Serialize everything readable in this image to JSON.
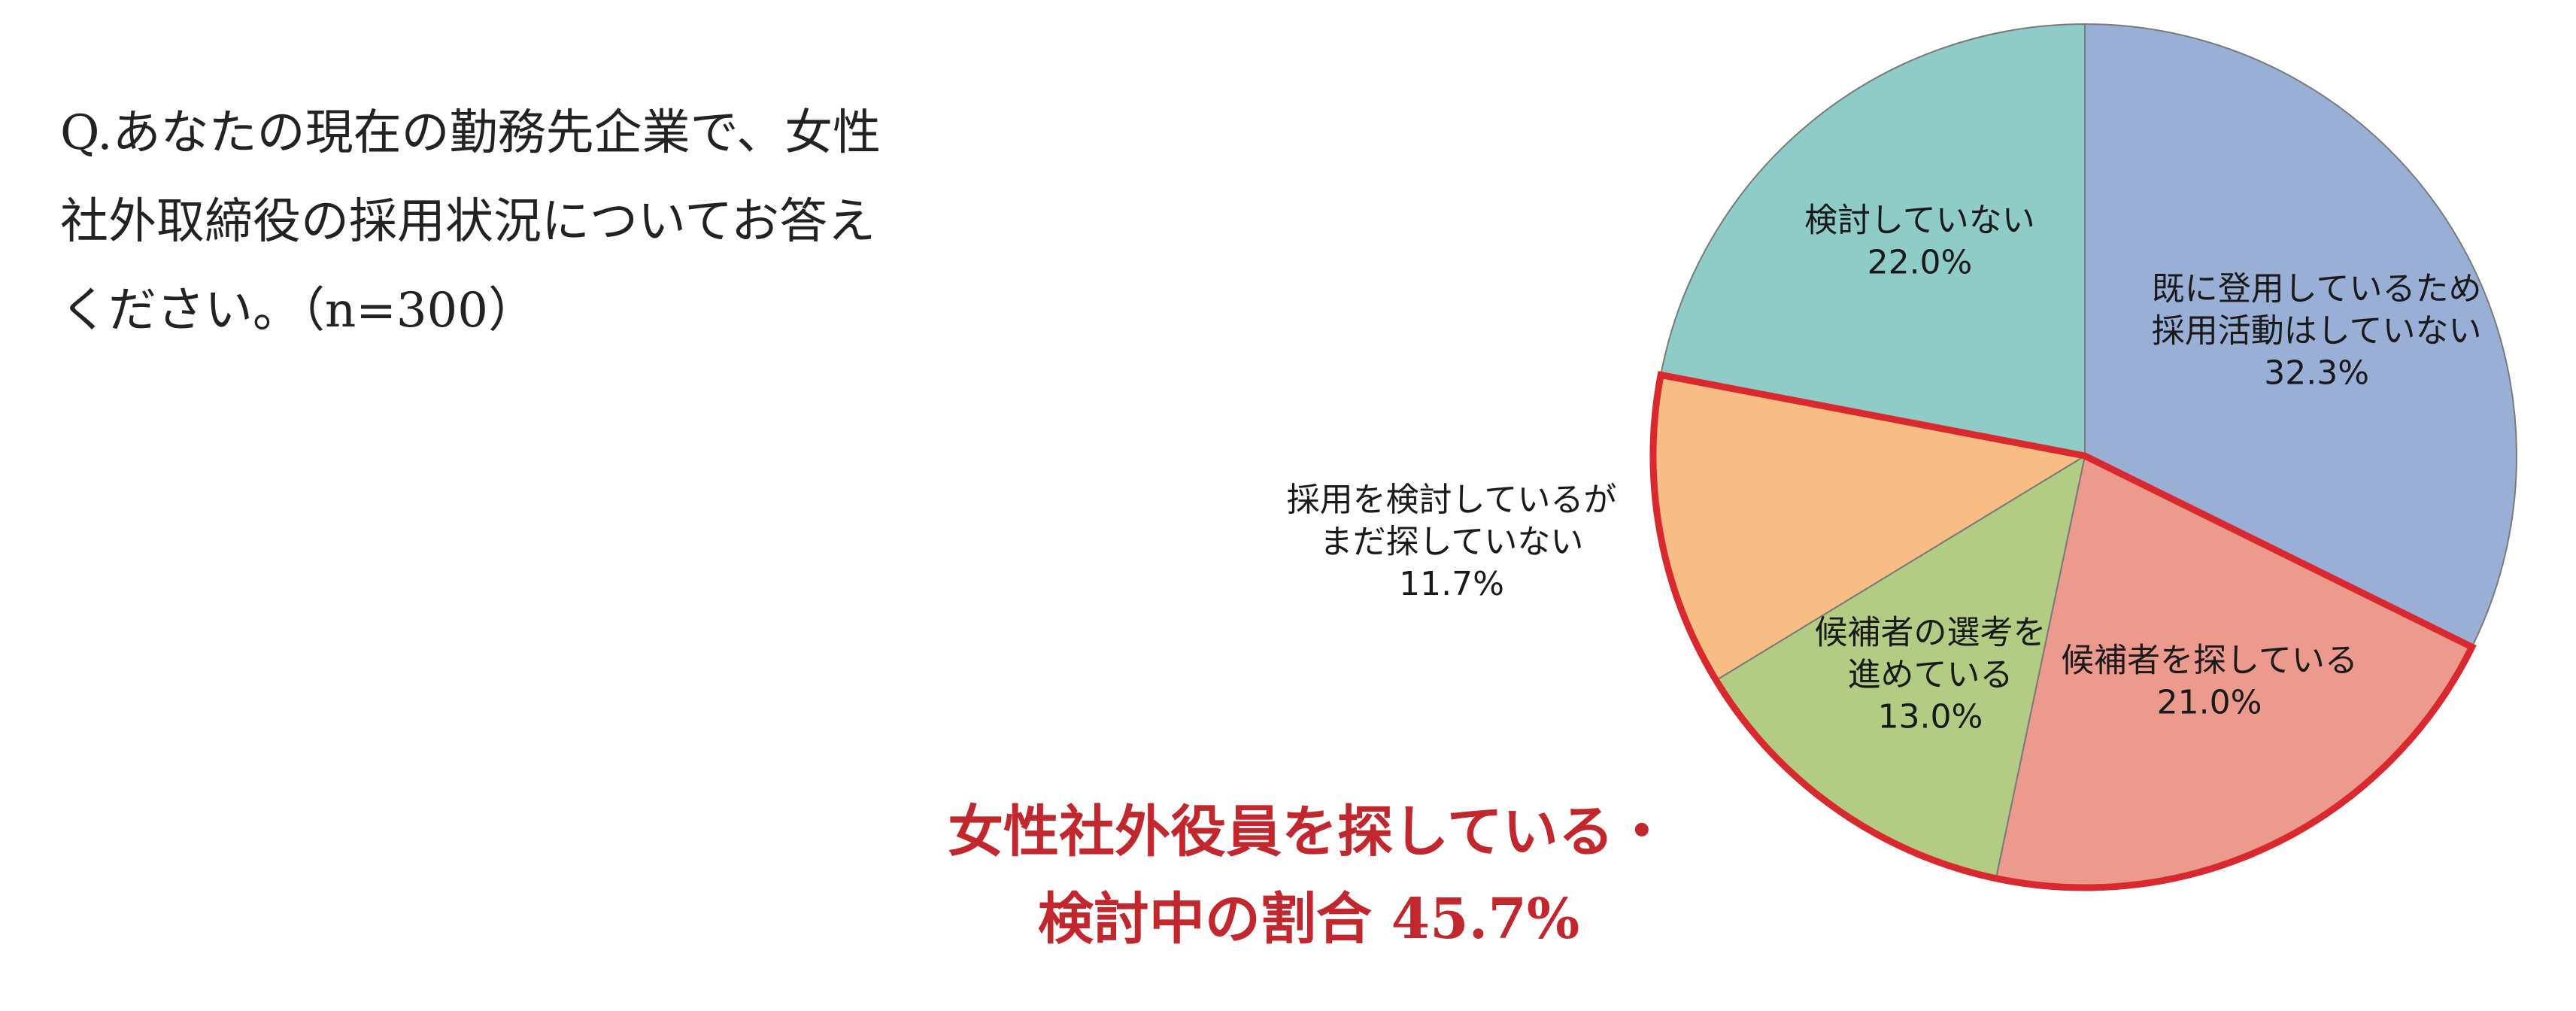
{
  "question": {
    "lines": [
      "Q.あなたの現在の勤務先企業で、女性",
      "社外取締役の採用状況についてお答え",
      "ください。（n=300）"
    ]
  },
  "highlight": {
    "lines": [
      "女性社外役員を探している・",
      "検討中の割合 45.7%"
    ],
    "color": "#c1272d"
  },
  "chart_data": {
    "type": "pie",
    "title": "",
    "start_angle_deg": 0,
    "direction": "clockwise",
    "slices": [
      {
        "label_lines": [
          "既に登用しているため",
          "採用活動はしていない"
        ],
        "value": 32.3,
        "value_label": "32.3%",
        "color": "#9aafd6",
        "highlighted": false
      },
      {
        "label_lines": [
          "候補者を探している"
        ],
        "value": 21.0,
        "value_label": "21.0%",
        "color": "#ec9a8e",
        "highlighted": true
      },
      {
        "label_lines": [
          "候補者の選考を",
          "進めている"
        ],
        "value": 13.0,
        "value_label": "13.0%",
        "color": "#b2cc84",
        "highlighted": true
      },
      {
        "label_lines": [
          "採用を検討しているが",
          "まだ探していない"
        ],
        "value": 11.7,
        "value_label": "11.7%",
        "color": "#f8bd85",
        "highlighted": true
      },
      {
        "label_lines": [
          "検討していない"
        ],
        "value": 22.0,
        "value_label": "22.0%",
        "color": "#8fcbc7",
        "highlighted": false
      }
    ],
    "highlight_outline_color": "#d9292e"
  }
}
